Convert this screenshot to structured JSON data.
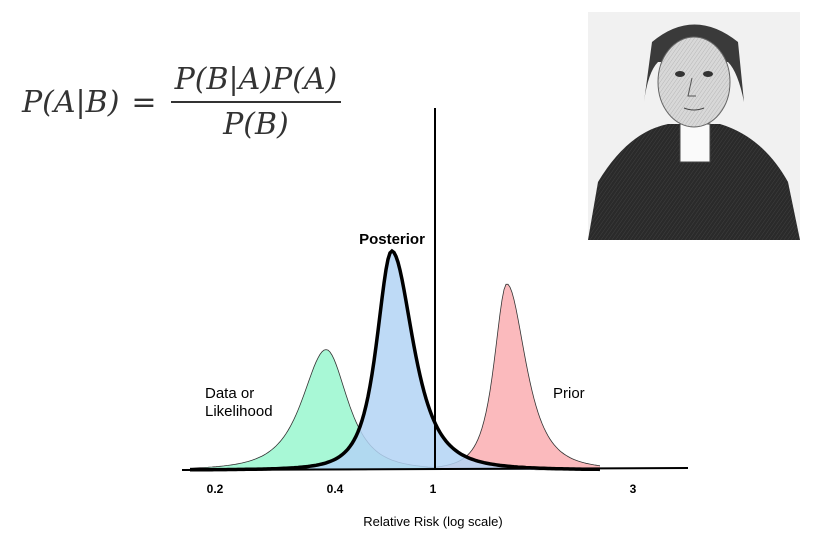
{
  "formula": {
    "lhs": "P(A|B)",
    "equals": "=",
    "numerator": "P(B|A)P(A)",
    "denominator": "P(B)"
  },
  "portrait": {
    "description_icon": "portrait-engraving"
  },
  "chart_data": {
    "type": "area",
    "xlabel": "Relative Risk (log scale)",
    "x_scale": "log",
    "ticks": [
      "0.2",
      "0.4",
      "1",
      "3"
    ],
    "reference_line": "1",
    "series": [
      {
        "name": "Data or Likelihood",
        "label_lines": [
          "Data or",
          "Likelihood"
        ],
        "peak_rr": 0.38,
        "relative_height": 0.55,
        "color": "#9ff7d2"
      },
      {
        "name": "Posterior",
        "label_lines": [
          "Posterior"
        ],
        "peak_rr": 0.68,
        "relative_height": 1.0,
        "color": "#b3d3f5"
      },
      {
        "name": "Prior",
        "label_lines": [
          "Prior"
        ],
        "peak_rr": 1.5,
        "relative_height": 0.85,
        "color": "#fbb3b6"
      }
    ]
  }
}
